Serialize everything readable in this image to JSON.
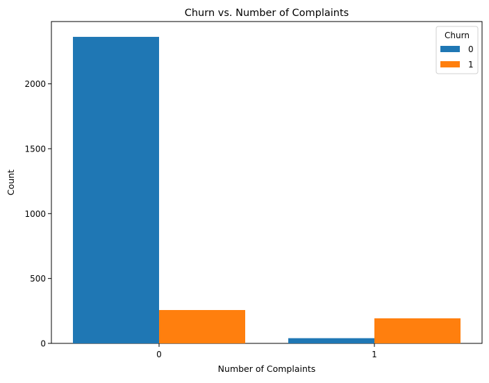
{
  "chart_data": {
    "type": "bar",
    "title": "Churn vs. Number of Complaints",
    "xlabel": "Number of Complaints",
    "ylabel": "Count",
    "categories": [
      "0",
      "1"
    ],
    "series": [
      {
        "name": "0",
        "values": [
          2362,
          40
        ],
        "color": "#1f77b4"
      },
      {
        "name": "1",
        "values": [
          257,
          193
        ],
        "color": "#ff7f0e"
      }
    ],
    "yticks": [
      0,
      500,
      1000,
      1500,
      2000
    ],
    "ylim": [
      0,
      2480
    ],
    "grid": false,
    "legend": {
      "title": "Churn",
      "position": "top-right"
    }
  }
}
